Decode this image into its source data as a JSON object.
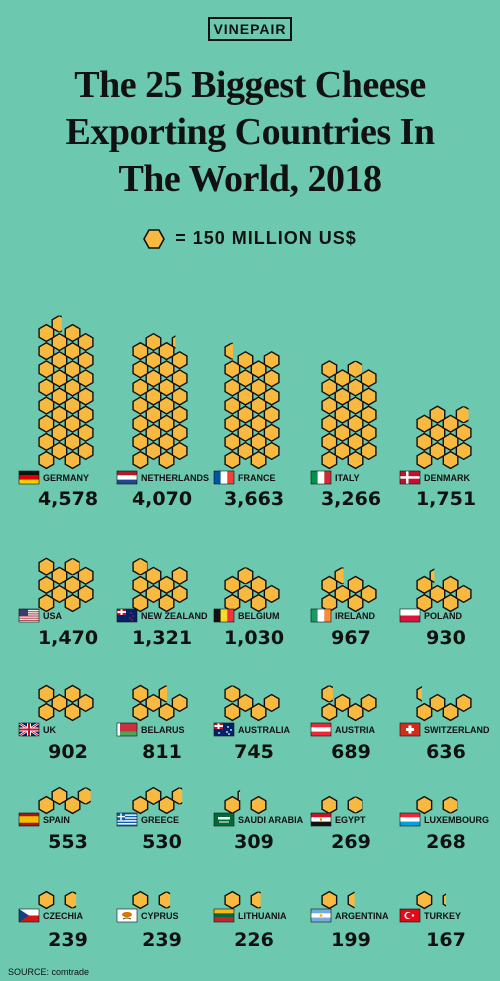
{
  "brand": "VINEPAIR",
  "title_lines": [
    "The 25 Biggest Cheese",
    "Exporting Countries In",
    "The World, 2018"
  ],
  "legend_text": "= 150 MILLION US$",
  "source": "SOURCE: comtrade",
  "colors": {
    "background": "#6cc8ae",
    "hex_fill": "#f7b940",
    "hex_stroke": "#111111",
    "text": "#111111"
  },
  "chart_data": {
    "type": "pictograph",
    "unit_value": 150,
    "unit": "MILLION US$",
    "title": "The 25 Biggest Cheese Exporting Countries In The World, 2018",
    "categories": [
      "GERMANY",
      "NETHERLANDS",
      "FRANCE",
      "ITALY",
      "DENMARK",
      "USA",
      "NEW ZEALAND",
      "BELGIUM",
      "IRELAND",
      "POLAND",
      "UK",
      "BELARUS",
      "AUSTRALIA",
      "AUSTRIA",
      "SWITZERLAND",
      "SPAIN",
      "GREECE",
      "SAUDI ARABIA",
      "EGYPT",
      "LUXEMBOURG",
      "CZECHIA",
      "CYPRUS",
      "LITHUANIA",
      "ARGENTINA",
      "TURKEY"
    ],
    "values": [
      4578,
      4070,
      3663,
      3266,
      1751,
      1470,
      1321,
      1030,
      967,
      930,
      902,
      811,
      745,
      689,
      636,
      553,
      530,
      309,
      269,
      268,
      239,
      239,
      226,
      199,
      167
    ],
    "value_labels": [
      "4,578",
      "4,070",
      "3,663",
      "3,266",
      "1,751",
      "1,470",
      "1,321",
      "1,030",
      "967",
      "930",
      "902",
      "811",
      "745",
      "689",
      "636",
      "553",
      "530",
      "309",
      "269",
      "268",
      "239",
      "239",
      "226",
      "199",
      "167"
    ],
    "flags": [
      "germany-flag",
      "netherlands-flag",
      "france-flag",
      "italy-flag",
      "denmark-flag",
      "usa-flag",
      "new-zealand-flag",
      "belgium-flag",
      "ireland-flag",
      "poland-flag",
      "uk-flag",
      "belarus-flag",
      "australia-flag",
      "austria-flag",
      "switzerland-flag",
      "spain-flag",
      "greece-flag",
      "saudi-arabia-flag",
      "egypt-flag",
      "luxembourg-flag",
      "czechia-flag",
      "cyprus-flag",
      "lithuania-flag",
      "argentina-flag",
      "turkey-flag"
    ]
  }
}
